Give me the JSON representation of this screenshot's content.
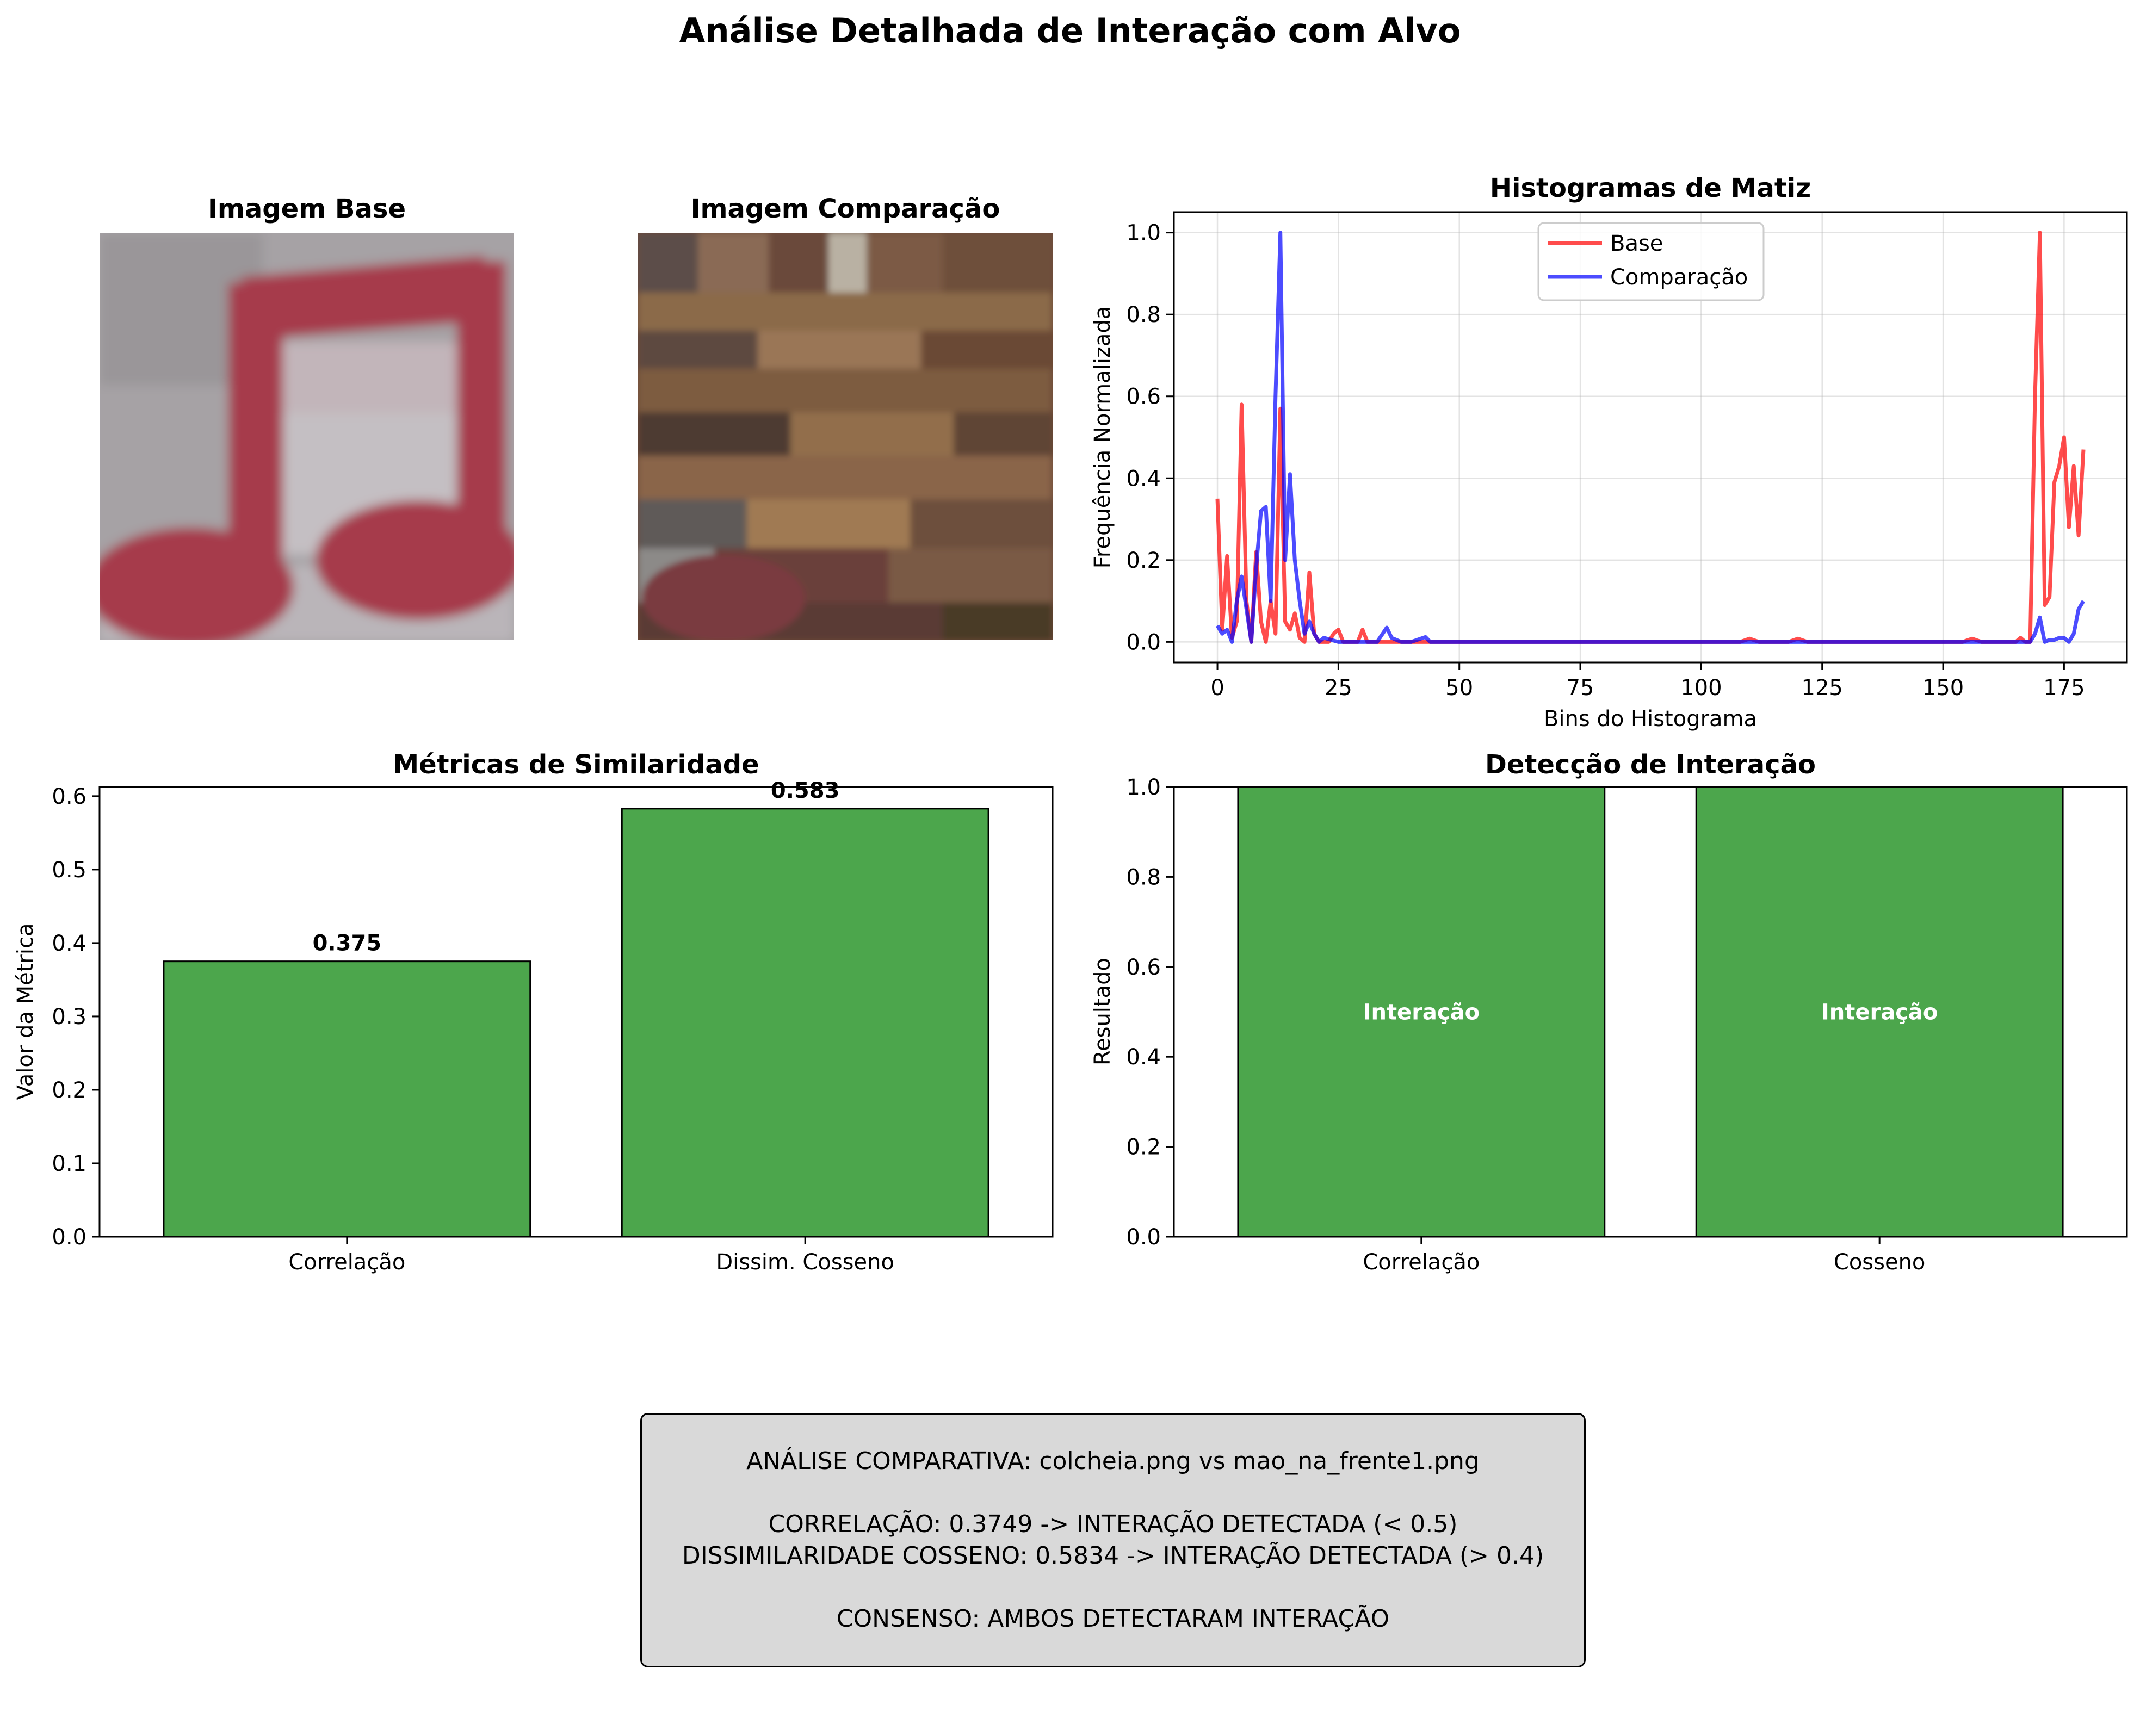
{
  "figure": {
    "title": "Análise Detalhada de Interação com Alvo"
  },
  "images": {
    "base_title": "Imagem Base",
    "comparison_title": "Imagem Comparação"
  },
  "colors": {
    "base_line": "#ff0000",
    "comparison_line": "#0000ff",
    "bar_fill": "#4ca64c",
    "summary_bg": "#d9d9d9"
  },
  "chart_data": [
    {
      "type": "line",
      "title": "Histogramas de Matiz",
      "xlabel": "Bins do Histograma",
      "ylabel": "Frequência Normalizada",
      "xlim": [
        -9,
        188
      ],
      "ylim": [
        -0.05,
        1.05
      ],
      "xticks": [
        0,
        25,
        50,
        75,
        100,
        125,
        150,
        175
      ],
      "yticks": [
        0.0,
        0.2,
        0.4,
        0.6,
        0.8,
        1.0
      ],
      "grid": true,
      "legend_position": "upper center",
      "series": [
        {
          "name": "Base",
          "x": [
            0,
            1,
            2,
            3,
            4,
            5,
            6,
            7,
            8,
            9,
            10,
            11,
            12,
            13,
            14,
            15,
            16,
            17,
            18,
            19,
            20,
            21,
            22,
            23,
            24,
            25,
            26,
            27,
            28,
            29,
            30,
            31,
            32,
            33,
            34,
            35,
            36,
            40,
            45,
            50,
            55,
            60,
            70,
            80,
            90,
            100,
            108,
            110,
            112,
            118,
            120,
            122,
            130,
            140,
            150,
            154,
            156,
            158,
            160,
            165,
            166,
            167,
            168,
            169,
            170,
            171,
            172,
            173,
            174,
            175,
            176,
            177,
            178,
            179
          ],
          "y": [
            0.35,
            0.03,
            0.21,
            0.01,
            0.05,
            0.58,
            0.1,
            0.0,
            0.22,
            0.05,
            0.0,
            0.1,
            0.02,
            0.57,
            0.05,
            0.03,
            0.07,
            0.01,
            0.0,
            0.17,
            0.02,
            0.0,
            0.0,
            0.0,
            0.02,
            0.03,
            0.0,
            0.0,
            0.0,
            0.0,
            0.03,
            0.0,
            0.0,
            0.0,
            0.0,
            0.0,
            0.0,
            0.0,
            0.0,
            0.0,
            0.0,
            0.0,
            0.0,
            0.0,
            0.0,
            0.0,
            0.0,
            0.008,
            0.0,
            0.0,
            0.008,
            0.0,
            0.0,
            0.0,
            0.0,
            0.0,
            0.008,
            0.0,
            0.0,
            0.0,
            0.01,
            0.0,
            0.0,
            0.6,
            1.0,
            0.09,
            0.11,
            0.39,
            0.43,
            0.5,
            0.28,
            0.43,
            0.26,
            0.47
          ]
        },
        {
          "name": "Comparação",
          "x": [
            0,
            1,
            2,
            3,
            4,
            5,
            6,
            7,
            8,
            9,
            10,
            11,
            12,
            13,
            14,
            15,
            16,
            17,
            18,
            19,
            20,
            21,
            22,
            25,
            30,
            33,
            35,
            36,
            38,
            40,
            43,
            44,
            46,
            50,
            60,
            100,
            160,
            165,
            168,
            169,
            170,
            171,
            172,
            173,
            174,
            175,
            176,
            177,
            178,
            179
          ],
          "y": [
            0.04,
            0.02,
            0.03,
            0.0,
            0.1,
            0.16,
            0.08,
            0.0,
            0.18,
            0.32,
            0.33,
            0.1,
            0.6,
            1.0,
            0.2,
            0.41,
            0.2,
            0.1,
            0.02,
            0.05,
            0.02,
            0.0,
            0.01,
            0.0,
            0.0,
            0.0,
            0.035,
            0.01,
            0.0,
            0.0,
            0.012,
            0.0,
            0.0,
            0.0,
            0.0,
            0.0,
            0.0,
            0.0,
            0.0,
            0.02,
            0.06,
            0.0,
            0.005,
            0.005,
            0.01,
            0.01,
            0.0,
            0.02,
            0.08,
            0.1
          ]
        }
      ]
    },
    {
      "type": "bar",
      "title": "Métricas de Similaridade",
      "xlabel": "",
      "ylabel": "Valor da Métrica",
      "categories": [
        "Correlação",
        "Dissim. Cosseno"
      ],
      "values": [
        0.375,
        0.583
      ],
      "value_labels": [
        "0.375",
        "0.583"
      ],
      "ylim": [
        0,
        0.6125
      ],
      "yticks": [
        0.0,
        0.1,
        0.2,
        0.3,
        0.4,
        0.5,
        0.6
      ],
      "grid": false
    },
    {
      "type": "bar",
      "title": "Detecção de Interação",
      "xlabel": "",
      "ylabel": "Resultado",
      "categories": [
        "Correlação",
        "Cosseno"
      ],
      "values": [
        1,
        1
      ],
      "value_labels": [
        "Interação",
        "Interação"
      ],
      "ylim": [
        0,
        1.0
      ],
      "yticks": [
        0.0,
        0.2,
        0.4,
        0.6,
        0.8,
        1.0
      ],
      "grid": false
    }
  ],
  "summary": {
    "line1": "ANÁLISE COMPARATIVA: colcheia.png vs mao_na_frente1.png",
    "line2": "CORRELAÇÃO: 0.3749 -> INTERAÇÃO DETECTADA (< 0.5)",
    "line3": "DISSIMILARIDADE COSSENO: 0.5834 -> INTERAÇÃO DETECTADA (> 0.4)",
    "line4": "CONSENSO: AMBOS DETECTARAM INTERAÇÃO"
  }
}
